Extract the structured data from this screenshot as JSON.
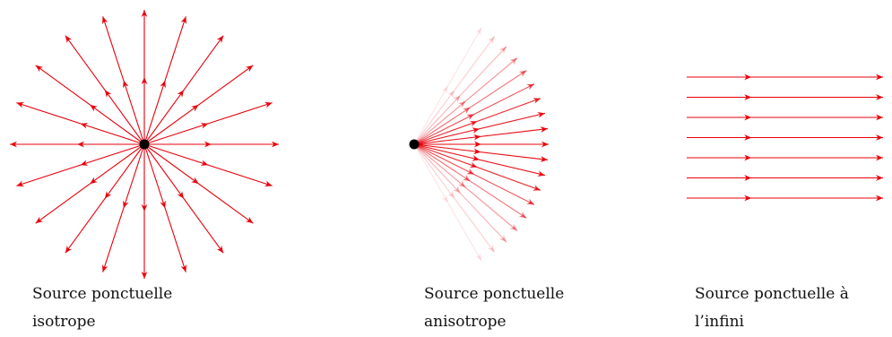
{
  "colors": {
    "ray": "#e8000b",
    "source": "#000000"
  },
  "panels": [
    {
      "id": "isotropic",
      "caption_line1": "Source ponctuelle",
      "caption_line2": "isotrope"
    },
    {
      "id": "anisotropic",
      "caption_line1": "Source ponctuelle",
      "caption_line2": "anisotrope"
    },
    {
      "id": "infinite",
      "caption_line1": "Source ponctuelle à",
      "caption_line2": "l’infini"
    }
  ]
}
